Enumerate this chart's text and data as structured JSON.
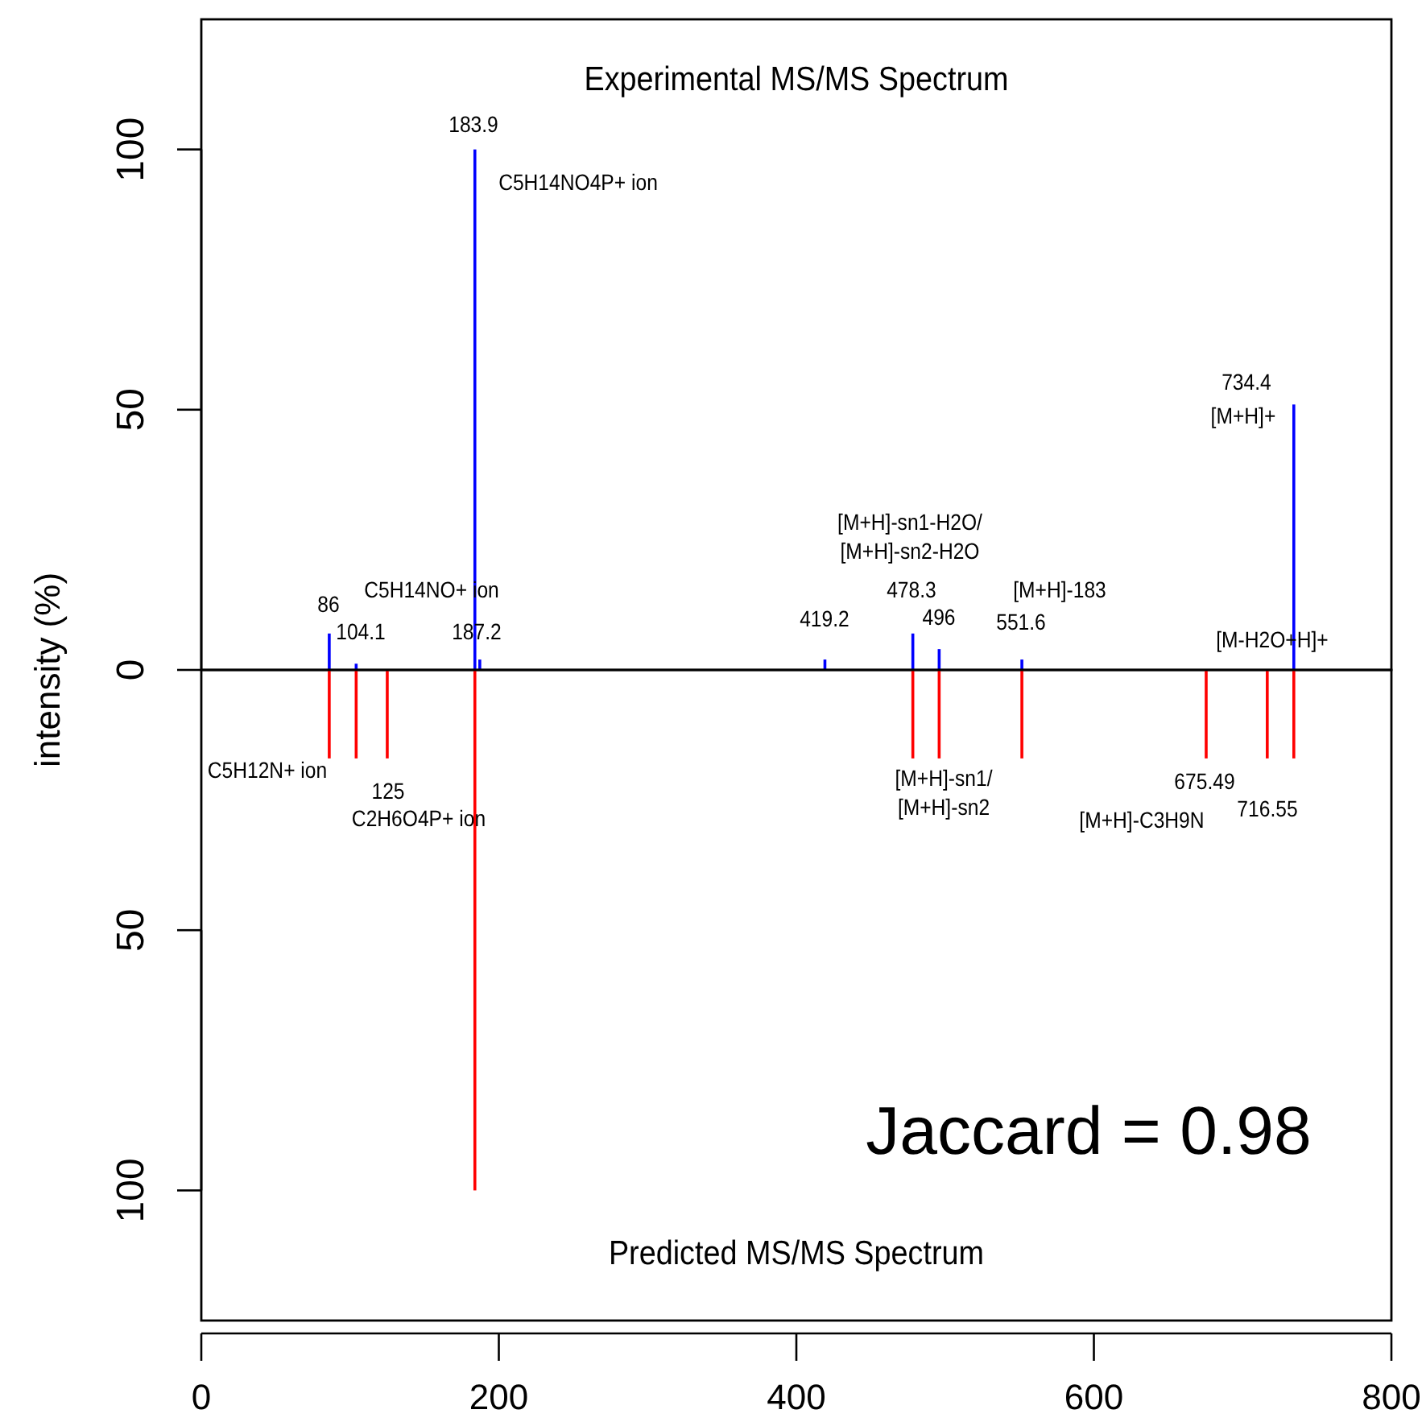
{
  "chart_data": [
    {
      "type": "bar",
      "ylabel": "intensity (%)",
      "xlim": [
        0,
        800
      ],
      "xticks": [
        0,
        200,
        400,
        600,
        800
      ],
      "ylim": [
        0,
        125
      ],
      "yticks": [
        0,
        50,
        100
      ],
      "tick_labels": "y",
      "series": [
        {
          "name": "Experimental MS/MS Spectrum",
          "color": "#0000ff",
          "x": [
            86,
            104.1,
            183.9,
            187.2,
            419.2,
            478.3,
            496,
            551.6,
            734.4
          ],
          "values": [
            7,
            1.2,
            100,
            2,
            2,
            7,
            4,
            2,
            51
          ]
        }
      ],
      "annotations": [
        "183.9",
        "C5H14NO4P+ ion",
        "86",
        "104.1",
        "C5H14NO+ ion",
        "187.2",
        "419.2",
        "478.3",
        "496",
        "551.6",
        "[M+H]-183",
        "[M+H]-sn1-H2O/\n[M+H]-sn2-H2O",
        "734.4",
        "[M+H]+",
        "[M-H2O+H]+"
      ]
    },
    {
      "type": "bar",
      "xlim": [
        0,
        800
      ],
      "xticks": [
        0,
        200,
        400,
        600,
        800
      ],
      "ylim": [
        125,
        0
      ],
      "yticks": [
        50,
        100
      ],
      "series": [
        {
          "name": "Predicted MS/MS Spectrum",
          "color": "#ff0000",
          "x": [
            86,
            104.1,
            125,
            183.9,
            478.3,
            496,
            551.6,
            675.49,
            716.55,
            734.4
          ],
          "values": [
            17,
            17,
            17,
            100,
            17,
            17,
            17,
            17,
            17,
            17
          ]
        }
      ],
      "annotations": [
        "C5H12N+ ion",
        "125",
        "C2H6O4P+ ion",
        "[M+H]-sn1/\n[M+H]-sn2",
        "675.49",
        "716.55",
        "[M+H]-C3H9N",
        "Jaccard = 0.98"
      ]
    }
  ]
}
